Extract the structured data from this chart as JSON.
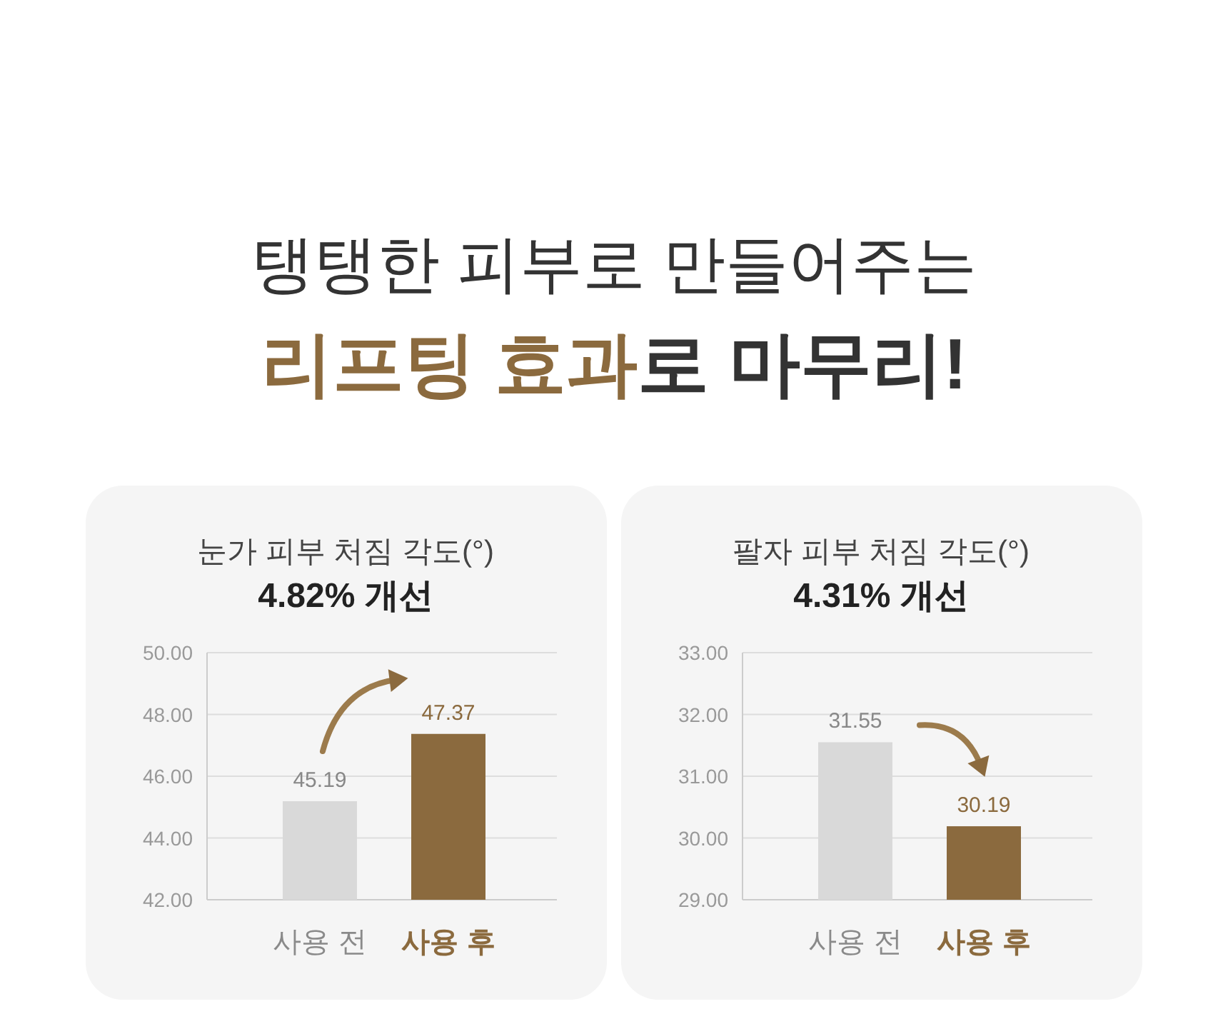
{
  "chart_data": [
    {
      "type": "bar",
      "title": "눈가 피부 처짐 각도(°)",
      "subtitle": "4.82% 개선",
      "annotations": [
        "탱탱한 피부로 만들어주는",
        "리프팅 효과",
        "로 마무리!"
      ],
      "categories": [
        "사용 전",
        "사용 후"
      ],
      "values": [
        45.19,
        47.37
      ],
      "colors": [
        "#d9d9d9",
        "#8b6a3e"
      ],
      "ylim": [
        42,
        50
      ],
      "yticks": [
        {
          "value": 42,
          "label": "42.00"
        },
        {
          "value": 44,
          "label": "44.00"
        },
        {
          "value": 46,
          "label": "46.00"
        },
        {
          "value": 48,
          "label": "48.00"
        },
        {
          "value": 50,
          "label": "50.00"
        }
      ],
      "grid": "y",
      "data_labels": true
    },
    {
      "type": "bar",
      "title": "팔자 피부 처짐 각도(°)",
      "subtitle": "4.31% 개선",
      "categories": [
        "사용 전",
        "사용 후"
      ],
      "values": [
        31.55,
        30.19
      ],
      "colors": [
        "#d9d9d9",
        "#8b6a3e"
      ],
      "ylim": [
        29,
        33
      ],
      "yticks": [
        {
          "value": 29,
          "label": "29.00"
        },
        {
          "value": 30,
          "label": "30.00"
        },
        {
          "value": 31,
          "label": "31.00"
        },
        {
          "value": 32,
          "label": "32.00"
        },
        {
          "value": 33,
          "label": "33.00"
        }
      ],
      "grid": "y",
      "data_labels": true
    }
  ]
}
